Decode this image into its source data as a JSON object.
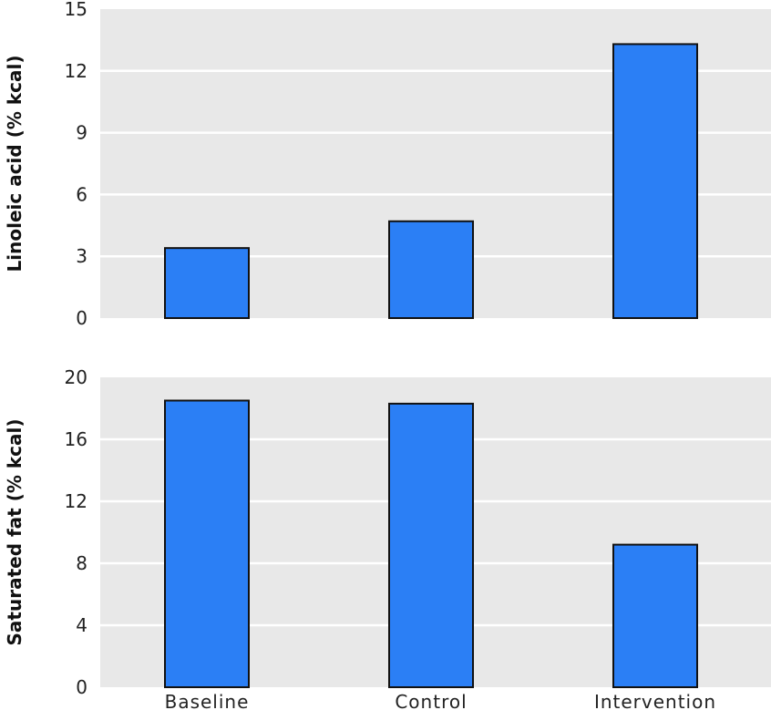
{
  "chart_data": [
    {
      "type": "bar",
      "categories": [
        "Baseline",
        "Control",
        "Intervention"
      ],
      "values": [
        3.4,
        4.7,
        13.3
      ],
      "xlabel": "",
      "ylabel": "Linoleic acid (% kcal)",
      "ylim": [
        0,
        15
      ],
      "yticks": [
        0,
        3,
        6,
        9,
        12,
        15
      ],
      "show_category_labels": false,
      "grid": true,
      "bar_color": "#2b7ff5",
      "background_color": "#e8e8e8"
    },
    {
      "type": "bar",
      "categories": [
        "Baseline",
        "Control",
        "Intervention"
      ],
      "values": [
        18.5,
        18.3,
        9.2
      ],
      "xlabel": "",
      "ylabel": "Saturated fat (% kcal)",
      "ylim": [
        0,
        20
      ],
      "yticks": [
        0,
        4,
        8,
        12,
        16,
        20
      ],
      "show_category_labels": true,
      "grid": true,
      "bar_color": "#2b7ff5",
      "background_color": "#e8e8e8"
    }
  ]
}
